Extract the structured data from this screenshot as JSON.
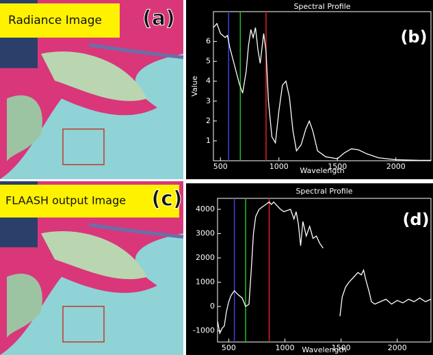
{
  "panels": [
    {
      "label": "Radiance Image",
      "tag": "(a)"
    },
    {
      "label": "FLAASH output Image",
      "tag": "(c)"
    }
  ],
  "chart_data": [
    {
      "type": "line",
      "title": "Spectral Profile",
      "annotation": "(b)",
      "x_label": "Wavelength",
      "y_label": "Value",
      "color": "#ffffff",
      "xlim": [
        440,
        2300
      ],
      "ylim": [
        0,
        7.5
      ],
      "xticks": [
        500,
        1000,
        1500,
        2000
      ],
      "yticks": [
        1,
        2,
        3,
        4,
        5,
        6
      ],
      "markers": [
        {
          "x": 570,
          "color": "#4040e0"
        },
        {
          "x": 670,
          "color": "#20c020"
        },
        {
          "x": 890,
          "color": "#e02020"
        }
      ],
      "x": [
        440,
        470,
        500,
        540,
        560,
        580,
        620,
        660,
        690,
        720,
        740,
        760,
        780,
        800,
        820,
        840,
        870,
        890,
        910,
        940,
        970,
        1000,
        1030,
        1060,
        1090,
        1120,
        1150,
        1190,
        1230,
        1260,
        1290,
        1330,
        1400,
        1500,
        1560,
        1620,
        1680,
        1750,
        1850,
        2000,
        2200,
        2300
      ],
      "values": [
        6.7,
        6.9,
        6.4,
        6.2,
        6.3,
        5.7,
        4.8,
        3.9,
        3.4,
        4.5,
        5.8,
        6.6,
        6.2,
        6.7,
        5.6,
        4.9,
        6.4,
        5.5,
        3.0,
        1.2,
        0.9,
        2.5,
        3.8,
        4.0,
        3.2,
        1.5,
        0.5,
        0.8,
        1.6,
        2.0,
        1.5,
        0.5,
        0.2,
        0.1,
        0.4,
        0.6,
        0.55,
        0.35,
        0.15,
        0.05,
        0.02,
        0.02
      ]
    },
    {
      "type": "line",
      "title": "Spectral Profile",
      "annotation": "(d)",
      "x_label": "Wavelength",
      "color": "#ffffff",
      "xlim": [
        400,
        2300
      ],
      "ylim": [
        -1460,
        4450
      ],
      "xticks": [
        500,
        1000,
        1500,
        2000
      ],
      "yticks": [
        -1000,
        0,
        1000,
        2000,
        3000,
        4000
      ],
      "markers": [
        {
          "x": 550,
          "color": "#4040e0"
        },
        {
          "x": 650,
          "color": "#20c020"
        },
        {
          "x": 860,
          "color": "#e02020"
        }
      ],
      "x": [
        400,
        420,
        440,
        460,
        480,
        500,
        520,
        550,
        580,
        620,
        650,
        680,
        700,
        720,
        740,
        770,
        800,
        830,
        860,
        880,
        900,
        930,
        960,
        990,
        1020,
        1050,
        1080,
        1100,
        1120,
        1140,
        1160,
        1190,
        1220,
        1250,
        1280,
        1310,
        1340,
        1400,
        1490,
        1510,
        1540,
        1570,
        1610,
        1650,
        1680,
        1700,
        1720,
        1750,
        1770,
        1800,
        1850,
        1900,
        1950,
        2000,
        2050,
        2100,
        2150,
        2200,
        2250,
        2300
      ],
      "values": [
        -600,
        -1100,
        -900,
        -800,
        -200,
        200,
        450,
        650,
        500,
        350,
        0,
        100,
        1500,
        3000,
        3700,
        4000,
        4100,
        4200,
        4300,
        4200,
        4300,
        4150,
        4000,
        3900,
        3950,
        4000,
        3600,
        3900,
        3400,
        2500,
        3500,
        2900,
        3300,
        2800,
        2900,
        2600,
        2400,
        null,
        -400,
        400,
        800,
        1000,
        1200,
        1400,
        1300,
        1500,
        1100,
        600,
        200,
        100,
        200,
        300,
        100,
        250,
        150,
        300,
        200,
        350,
        200,
        300
      ]
    }
  ]
}
